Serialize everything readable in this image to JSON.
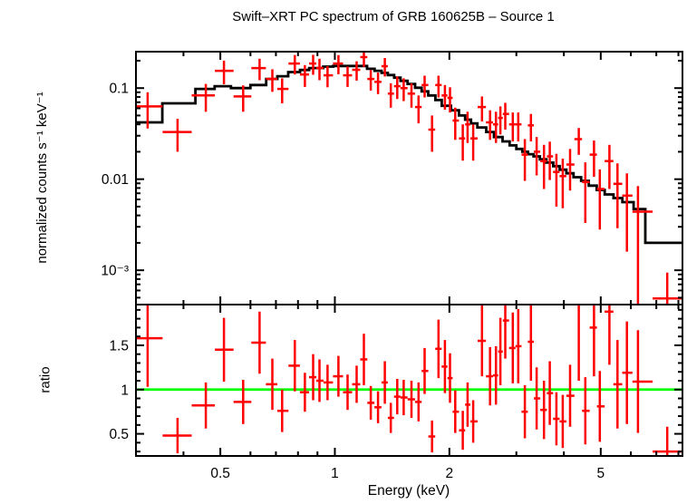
{
  "title": "Swift–XRT PC spectrum of GRB 160625B – Source 1",
  "chart_data": {
    "type": "scatter",
    "title": "Swift–XRT PC spectrum of GRB 160625B – Source 1",
    "xlabel": "Energy (keV)",
    "xscale": "log",
    "xlim": [
      0.3,
      8.2
    ],
    "x_major_ticks": [
      0.5,
      1,
      2,
      5
    ],
    "x_major_tick_labels": [
      "0.5",
      "1",
      "2",
      "5"
    ],
    "x_minor_ticks": [
      0.4,
      0.6,
      0.7,
      0.8,
      0.9,
      3,
      4,
      6,
      7,
      8
    ],
    "grid": false,
    "legend": "none",
    "colors": {
      "data": "#ff0000",
      "model": "#000000",
      "reference": "#00ff00",
      "frame": "#000000",
      "background": "#ffffff"
    },
    "panels": [
      {
        "name": "spectrum",
        "ylabel": "normalized counts s⁻¹ keV⁻¹",
        "yscale": "log",
        "ylim": [
          0.00042,
          0.2512
        ],
        "y_major_ticks": [
          0.1,
          0.01,
          0.001
        ],
        "y_major_tick_labels": [
          "0.1",
          "0.01",
          "10⁻³"
        ],
        "series": [
          {
            "name": "data",
            "style": "error-bar-cross",
            "color": "#ff0000",
            "points_format": [
              "energy_keV",
              "counts",
              "counts_err"
            ],
            "points": [
              [
                0.322,
                0.063,
                0.027
              ],
              [
                0.386,
                0.033,
                0.013
              ],
              [
                0.458,
                0.083,
                0.028
              ],
              [
                0.511,
                0.155,
                0.045
              ],
              [
                0.574,
                0.081,
                0.026
              ],
              [
                0.634,
                0.166,
                0.044
              ],
              [
                0.685,
                0.126,
                0.035
              ],
              [
                0.727,
                0.098,
                0.03
              ],
              [
                0.785,
                0.186,
                0.045
              ],
              [
                0.834,
                0.141,
                0.038
              ],
              [
                0.877,
                0.186,
                0.046
              ],
              [
                0.911,
                0.166,
                0.044
              ],
              [
                0.957,
                0.138,
                0.036
              ],
              [
                1.022,
                0.186,
                0.044
              ],
              [
                1.08,
                0.138,
                0.035
              ],
              [
                1.141,
                0.159,
                0.038
              ],
              [
                1.192,
                0.219,
                0.048
              ],
              [
                1.243,
                0.126,
                0.032
              ],
              [
                1.299,
                0.117,
                0.031
              ],
              [
                1.353,
                0.174,
                0.04
              ],
              [
                1.403,
                0.087,
                0.026
              ],
              [
                1.459,
                0.105,
                0.029
              ],
              [
                1.517,
                0.1,
                0.028
              ],
              [
                1.59,
                0.087,
                0.026
              ],
              [
                1.66,
                0.062,
                0.021
              ],
              [
                1.722,
                0.108,
                0.029
              ],
              [
                1.801,
                0.035,
                0.015
              ],
              [
                1.872,
                0.108,
                0.029
              ],
              [
                1.947,
                0.083,
                0.025
              ],
              [
                2.008,
                0.078,
                0.024
              ],
              [
                2.072,
                0.044,
                0.017
              ],
              [
                2.169,
                0.028,
                0.012
              ],
              [
                2.233,
                0.04,
                0.015
              ],
              [
                2.31,
                0.028,
                0.012
              ],
              [
                2.437,
                0.062,
                0.019
              ],
              [
                2.558,
                0.042,
                0.015
              ],
              [
                2.651,
                0.04,
                0.015
              ],
              [
                2.723,
                0.047,
                0.016
              ],
              [
                2.806,
                0.052,
                0.017
              ],
              [
                2.937,
                0.04,
                0.014
              ],
              [
                3.034,
                0.04,
                0.014
              ],
              [
                3.158,
                0.0186,
                0.009
              ],
              [
                3.277,
                0.039,
                0.013
              ],
              [
                3.392,
                0.02,
                0.009
              ],
              [
                3.546,
                0.0158,
                0.008
              ],
              [
                3.672,
                0.0178,
                0.008
              ],
              [
                3.823,
                0.012,
                0.007
              ],
              [
                3.972,
                0.0108,
                0.006
              ],
              [
                4.152,
                0.0145,
                0.007
              ],
              [
                4.378,
                0.0275,
                0.009
              ],
              [
                4.553,
                0.0093,
                0.006
              ],
              [
                4.8,
                0.0186,
                0.008
              ],
              [
                4.972,
                0.0078,
                0.005
              ],
              [
                5.269,
                0.0158,
                0.008
              ],
              [
                5.532,
                0.0089,
                0.006
              ],
              [
                5.857,
                0.0066,
                0.005
              ],
              [
                6.263,
                0.0044,
                0.004
              ],
              [
                7.48,
                0.00049,
                0.00045
              ]
            ]
          },
          {
            "name": "model",
            "style": "step-histogram",
            "color": "#000000",
            "steps_format": [
              "bin_start_keV",
              "level_counts"
            ],
            "steps": [
              [
                0.3,
                0.042
              ],
              [
                0.352,
                0.068
              ],
              [
                0.43,
                0.098
              ],
              [
                0.483,
                0.105
              ],
              [
                0.533,
                0.1
              ],
              [
                0.6,
                0.108
              ],
              [
                0.66,
                0.126
              ],
              [
                0.706,
                0.135
              ],
              [
                0.754,
                0.15
              ],
              [
                0.81,
                0.158
              ],
              [
                0.856,
                0.166
              ],
              [
                0.932,
                0.172
              ],
              [
                0.99,
                0.175
              ],
              [
                1.215,
                0.163
              ],
              [
                1.272,
                0.155
              ],
              [
                1.327,
                0.147
              ],
              [
                1.378,
                0.139
              ],
              [
                1.432,
                0.13
              ],
              [
                1.488,
                0.12
              ],
              [
                1.553,
                0.111
              ],
              [
                1.625,
                0.101
              ],
              [
                1.691,
                0.092
              ],
              [
                1.76,
                0.083
              ],
              [
                1.838,
                0.074
              ],
              [
                1.91,
                0.064
              ],
              [
                2.02,
                0.057
              ],
              [
                2.12,
                0.05
              ],
              [
                2.2,
                0.045
              ],
              [
                2.28,
                0.041
              ],
              [
                2.37,
                0.037
              ],
              [
                2.5,
                0.033
              ],
              [
                2.62,
                0.029
              ],
              [
                2.76,
                0.026
              ],
              [
                2.88,
                0.0235
              ],
              [
                3.0,
                0.0215
              ],
              [
                3.11,
                0.02
              ],
              [
                3.22,
                0.0188
              ],
              [
                3.33,
                0.0178
              ],
              [
                3.46,
                0.0165
              ],
              [
                3.6,
                0.0152
              ],
              [
                3.75,
                0.0139
              ],
              [
                3.9,
                0.0127
              ],
              [
                4.06,
                0.0116
              ],
              [
                4.24,
                0.0105
              ],
              [
                4.44,
                0.0096
              ],
              [
                4.65,
                0.0085
              ],
              [
                4.88,
                0.0076
              ],
              [
                5.12,
                0.0068
              ],
              [
                5.4,
                0.0062
              ],
              [
                5.7,
                0.0056
              ],
              [
                6.1,
                0.0047
              ],
              [
                6.55,
                0.002
              ]
            ],
            "end": 8.2
          }
        ]
      },
      {
        "name": "ratio",
        "ylabel": "ratio",
        "yscale": "linear",
        "ylim": [
          0.25,
          1.96
        ],
        "y_major_ticks": [
          0.5,
          1,
          1.5
        ],
        "y_major_tick_labels": [
          "0.5",
          "1",
          "1.5"
        ],
        "y_minor_step": 0.1,
        "reference_line": {
          "y": 1.0,
          "color": "#00ff00"
        },
        "series": [
          {
            "name": "ratio-data",
            "style": "error-bar-cross",
            "color": "#ff0000",
            "points_format": [
              "energy_keV",
              "ratio",
              "ratio_err"
            ],
            "points": [
              [
                0.322,
                1.58,
                0.55
              ],
              [
                0.386,
                0.48,
                0.2
              ],
              [
                0.458,
                0.82,
                0.26
              ],
              [
                0.511,
                1.45,
                0.36
              ],
              [
                0.574,
                0.86,
                0.25
              ],
              [
                0.634,
                1.53,
                0.35
              ],
              [
                0.685,
                1.06,
                0.29
              ],
              [
                0.727,
                0.76,
                0.24
              ],
              [
                0.785,
                1.27,
                0.29
              ],
              [
                0.834,
                0.97,
                0.22
              ],
              [
                0.877,
                1.14,
                0.26
              ],
              [
                0.911,
                1.1,
                0.24
              ],
              [
                0.957,
                1.08,
                0.2
              ],
              [
                1.022,
                1.15,
                0.23
              ],
              [
                1.08,
                0.97,
                0.2
              ],
              [
                1.141,
                1.06,
                0.21
              ],
              [
                1.192,
                1.34,
                0.29
              ],
              [
                1.243,
                0.85,
                0.19
              ],
              [
                1.299,
                0.8,
                0.18
              ],
              [
                1.353,
                1.08,
                0.24
              ],
              [
                1.403,
                0.68,
                0.17
              ],
              [
                1.459,
                0.92,
                0.2
              ],
              [
                1.517,
                0.91,
                0.2
              ],
              [
                1.59,
                0.89,
                0.21
              ],
              [
                1.66,
                0.86,
                0.22
              ],
              [
                1.722,
                1.21,
                0.26
              ],
              [
                1.801,
                0.47,
                0.18
              ],
              [
                1.872,
                1.46,
                0.33
              ],
              [
                1.947,
                1.26,
                0.3
              ],
              [
                2.008,
                1.13,
                0.28
              ],
              [
                2.072,
                0.75,
                0.24
              ],
              [
                2.169,
                0.54,
                0.22
              ],
              [
                2.233,
                0.83,
                0.25
              ],
              [
                2.31,
                0.64,
                0.24
              ],
              [
                2.437,
                1.55,
                0.4
              ],
              [
                2.558,
                1.15,
                0.33
              ],
              [
                2.651,
                1.16,
                0.33
              ],
              [
                2.723,
                1.43,
                0.38
              ],
              [
                2.806,
                1.78,
                0.43
              ],
              [
                2.937,
                1.47,
                0.4
              ],
              [
                3.034,
                1.49,
                0.42
              ],
              [
                3.158,
                0.75,
                0.3
              ],
              [
                3.277,
                1.54,
                0.44
              ],
              [
                3.392,
                0.9,
                0.35
              ],
              [
                3.546,
                0.77,
                0.33
              ],
              [
                3.672,
                0.96,
                0.36
              ],
              [
                3.823,
                0.67,
                0.3
              ],
              [
                3.972,
                0.64,
                0.3
              ],
              [
                4.152,
                0.93,
                0.35
              ],
              [
                4.378,
                2.2,
                1.1
              ],
              [
                4.553,
                0.76,
                0.38
              ],
              [
                4.8,
                1.7,
                0.55
              ],
              [
                4.972,
                0.81,
                0.4
              ],
              [
                5.269,
                1.88,
                0.6
              ],
              [
                5.532,
                1.06,
                0.5
              ],
              [
                5.857,
                1.19,
                0.58
              ],
              [
                6.263,
                1.09,
                0.58
              ],
              [
                7.48,
                0.3,
                0.28
              ]
            ]
          }
        ]
      }
    ]
  }
}
